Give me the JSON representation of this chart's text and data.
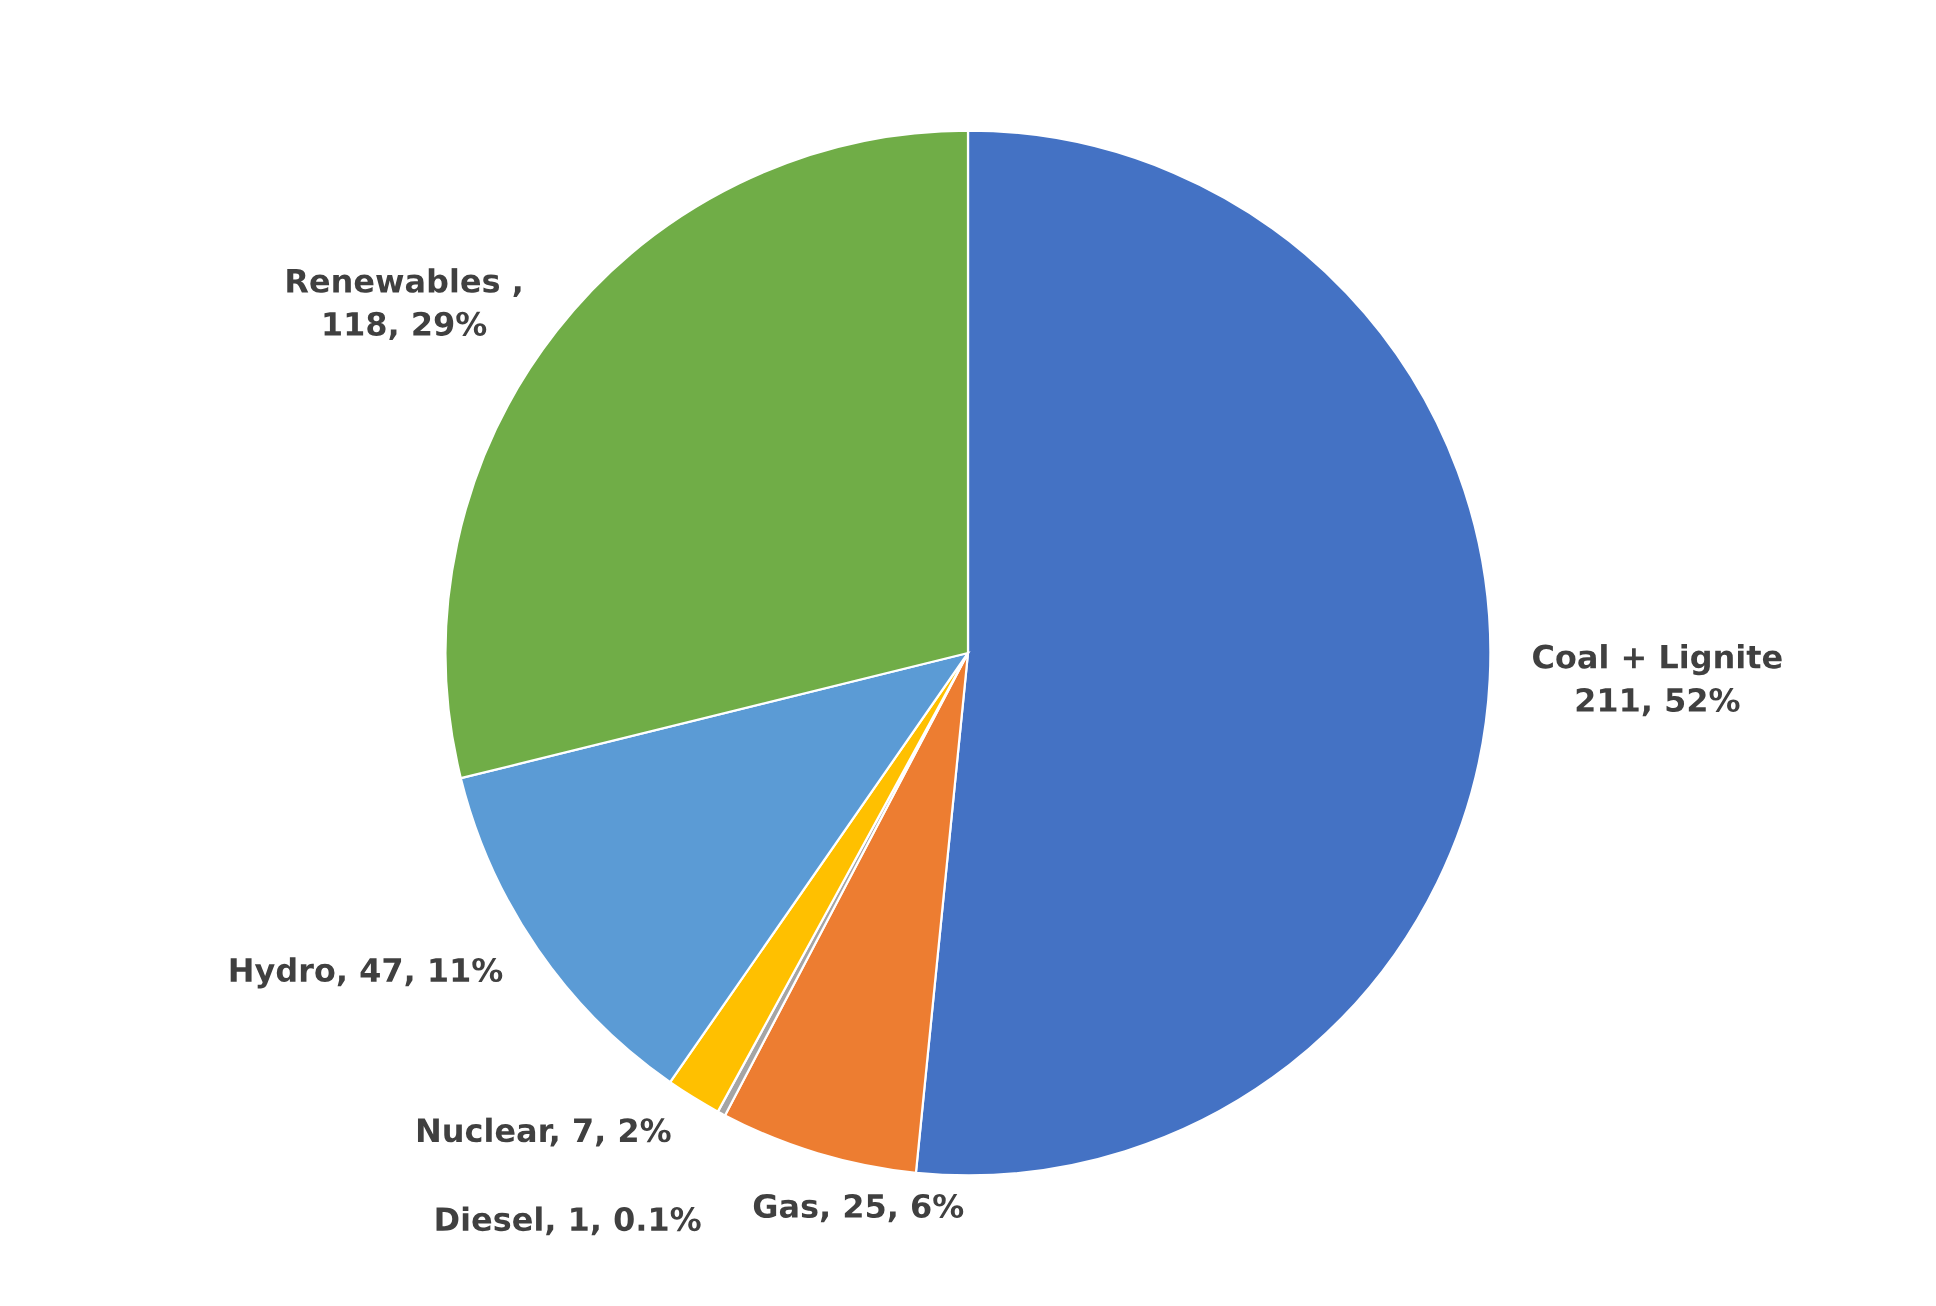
{
  "chart_data": {
    "type": "pie",
    "categories": [
      "Coal + Lignite",
      "Gas",
      "Diesel",
      "Nuclear",
      "Hydro",
      "Renewables"
    ],
    "values": [
      211,
      25,
      1,
      7,
      47,
      118
    ],
    "value_labels": [
      "\n211, 52%",
      ", 25, 6%",
      ", 1, 0.1%",
      ", 7, 2%",
      ", 47, 11%",
      " ,\n118, 29%"
    ],
    "colors": [
      "#4472c4",
      "#ed7d31",
      "#a5a5a5",
      "#ffc000",
      "#5b9bd5",
      "#70ad47"
    ],
    "legend": false
  }
}
